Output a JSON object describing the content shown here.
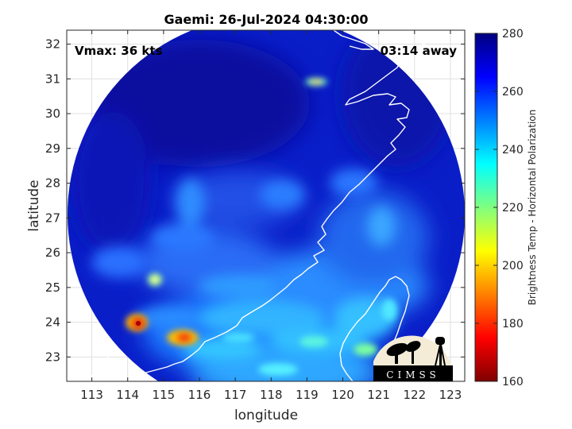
{
  "figure": {
    "title": "Gaemi: 26-Jul-2024 04:30:00",
    "vmax_label": "Vmax: 36 kts",
    "distance_label": "03:14 away",
    "logo_text": "CIMSS"
  },
  "chart_data": {
    "type": "heatmap",
    "title": "Gaemi: 26-Jul-2024 04:30:00",
    "xlabel": "longitude",
    "ylabel": "latitude",
    "xlim": [
      112.3,
      123.4
    ],
    "ylim": [
      22.3,
      32.4
    ],
    "x_ticks": [
      113,
      114,
      115,
      116,
      117,
      118,
      119,
      120,
      121,
      122,
      123
    ],
    "y_ticks": [
      23,
      24,
      25,
      26,
      27,
      28,
      29,
      30,
      31,
      32
    ],
    "grid": true,
    "colorbar": {
      "label": "Brightness Temp - Horizontal Polarization",
      "range": [
        160,
        280
      ],
      "ticks": [
        160,
        180,
        200,
        220,
        240,
        260,
        280
      ],
      "colormap": "jet"
    },
    "features": [
      {
        "lon": 114.3,
        "lat": 23.9,
        "value": 172
      },
      {
        "lon": 115.6,
        "lat": 23.5,
        "value": 195
      },
      {
        "lon": 114.9,
        "lat": 25.1,
        "value": 230
      },
      {
        "lon": 119.3,
        "lat": 30.8,
        "value": 210
      },
      {
        "lon": 117.9,
        "lat": 22.6,
        "value": 225
      },
      {
        "lon": 120.8,
        "lat": 23.2,
        "value": 215
      }
    ]
  }
}
